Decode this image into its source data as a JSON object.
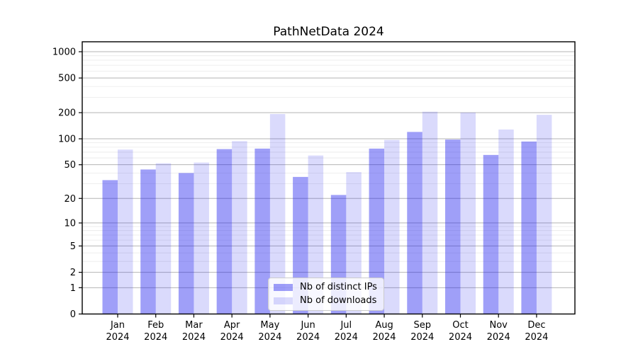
{
  "chart_data": {
    "type": "bar",
    "title": "PathNetData 2024",
    "categories": [
      "Jan",
      "Feb",
      "Mar",
      "Apr",
      "May",
      "Jun",
      "Jul",
      "Aug",
      "Sep",
      "Oct",
      "Nov",
      "Dec"
    ],
    "category_year": "2024",
    "series": [
      {
        "name": "Nb of distinct IPs",
        "color": "#1a1aee",
        "fill_opacity": 0.42,
        "values": [
          33,
          44,
          40,
          76,
          77,
          36,
          22,
          77,
          120,
          98,
          65,
          93
        ]
      },
      {
        "name": "Nb of downloads",
        "color": "#1a1aee",
        "fill_opacity": 0.16,
        "values": [
          75,
          52,
          53,
          94,
          193,
          64,
          41,
          97,
          205,
          201,
          128,
          189
        ]
      }
    ],
    "yscale": "log(value+1)",
    "ylim": [
      0,
      1300
    ],
    "yticks": [
      0,
      1,
      2,
      5,
      10,
      20,
      50,
      100,
      200,
      500,
      1000
    ],
    "minor_yticks": [
      3,
      4,
      6,
      7,
      8,
      9,
      30,
      40,
      60,
      70,
      80,
      90,
      300,
      400,
      600,
      700,
      800,
      900
    ],
    "grid": "both",
    "legend_position": "lower-center",
    "xlabel": "",
    "ylabel": ""
  }
}
